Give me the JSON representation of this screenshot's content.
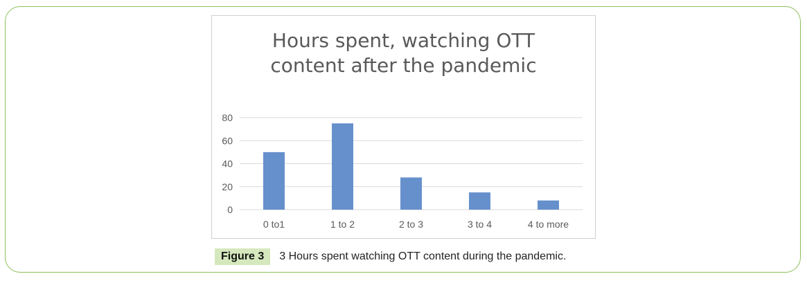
{
  "caption": {
    "label": "Figure 3",
    "text": "3 Hours spent watching OTT content during the pandemic."
  },
  "chart_data": {
    "type": "bar",
    "title_lines": [
      "Hours  spent, watching OTT",
      "content after the pandemic"
    ],
    "categories": [
      "0 to1",
      "1 to 2",
      "2 to 3",
      "3 to 4",
      "4 to  more"
    ],
    "values": [
      50,
      75,
      28,
      15,
      8
    ],
    "yticks": [
      0,
      20,
      40,
      60,
      80
    ],
    "ylim": [
      0,
      80
    ],
    "grid": true,
    "bar_color": "#6690cc",
    "grid_color": "#d9d9d9",
    "tick_color": "#595959"
  }
}
